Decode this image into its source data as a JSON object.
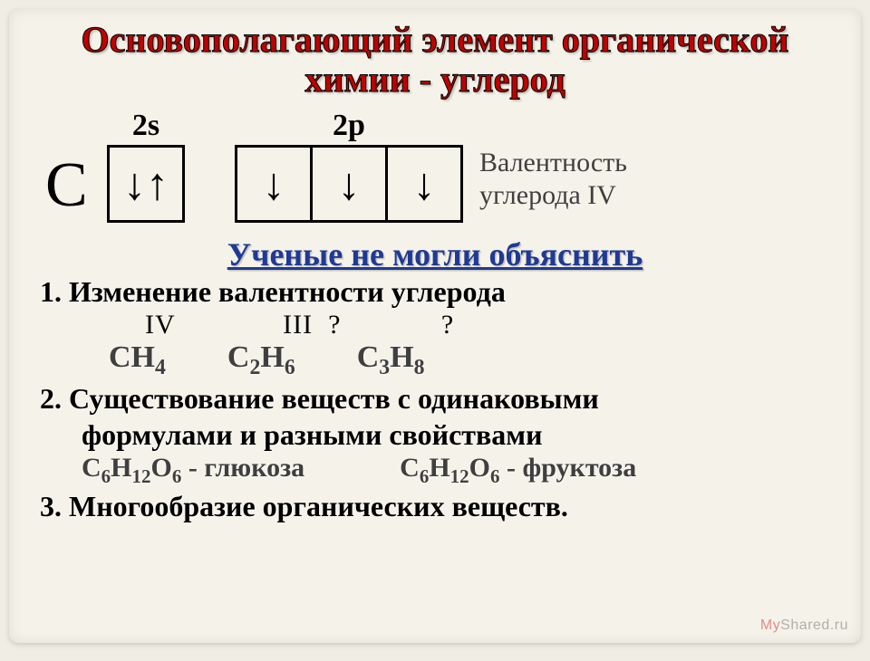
{
  "title": "Основополагающий элемент органической химии - углерод",
  "orbitals": {
    "element": "С",
    "s_label": "2s",
    "p_label": "2p",
    "s_box": "↓↑",
    "p_boxes": [
      "↓",
      "↓",
      "↓"
    ]
  },
  "valence": {
    "line1": "Валентность",
    "line2": "углерода IV"
  },
  "subtitle": "Ученые не могли объяснить",
  "points": {
    "p1": "1. Изменение валентности углерода",
    "valency_row": "IV              III  ?             ?",
    "formulas": {
      "f1": "CH",
      "f1s": "4",
      "f2": "C",
      "f2a": "2",
      "f2b": "H",
      "f2c": "6",
      "f3": "C",
      "f3a": "3",
      "f3b": "H",
      "f3c": "8"
    },
    "p2a": "2. Существование веществ с одинаковыми",
    "p2b": "формулами и разными свойствами",
    "isomers": {
      "left_pre": "C",
      "l1": "6",
      "l2": "H",
      "l3": "12",
      "l4": "O",
      "l5": "6",
      "left_suf": " - глюкоза",
      "right_pre": "C",
      "r1": "6",
      "r2": "H",
      "r3": "12",
      "r4": "O",
      "r5": "6",
      "right_suf": " - фруктоза"
    },
    "p3": "3. Многообразие органических веществ."
  },
  "watermark": {
    "my": "My",
    "rest": "Shared.ru"
  },
  "colors": {
    "title": "#c00000",
    "subtitle": "#1f3a93",
    "body": "#000000",
    "muted": "#3f3f3f",
    "bg": "#f5f2e9"
  }
}
